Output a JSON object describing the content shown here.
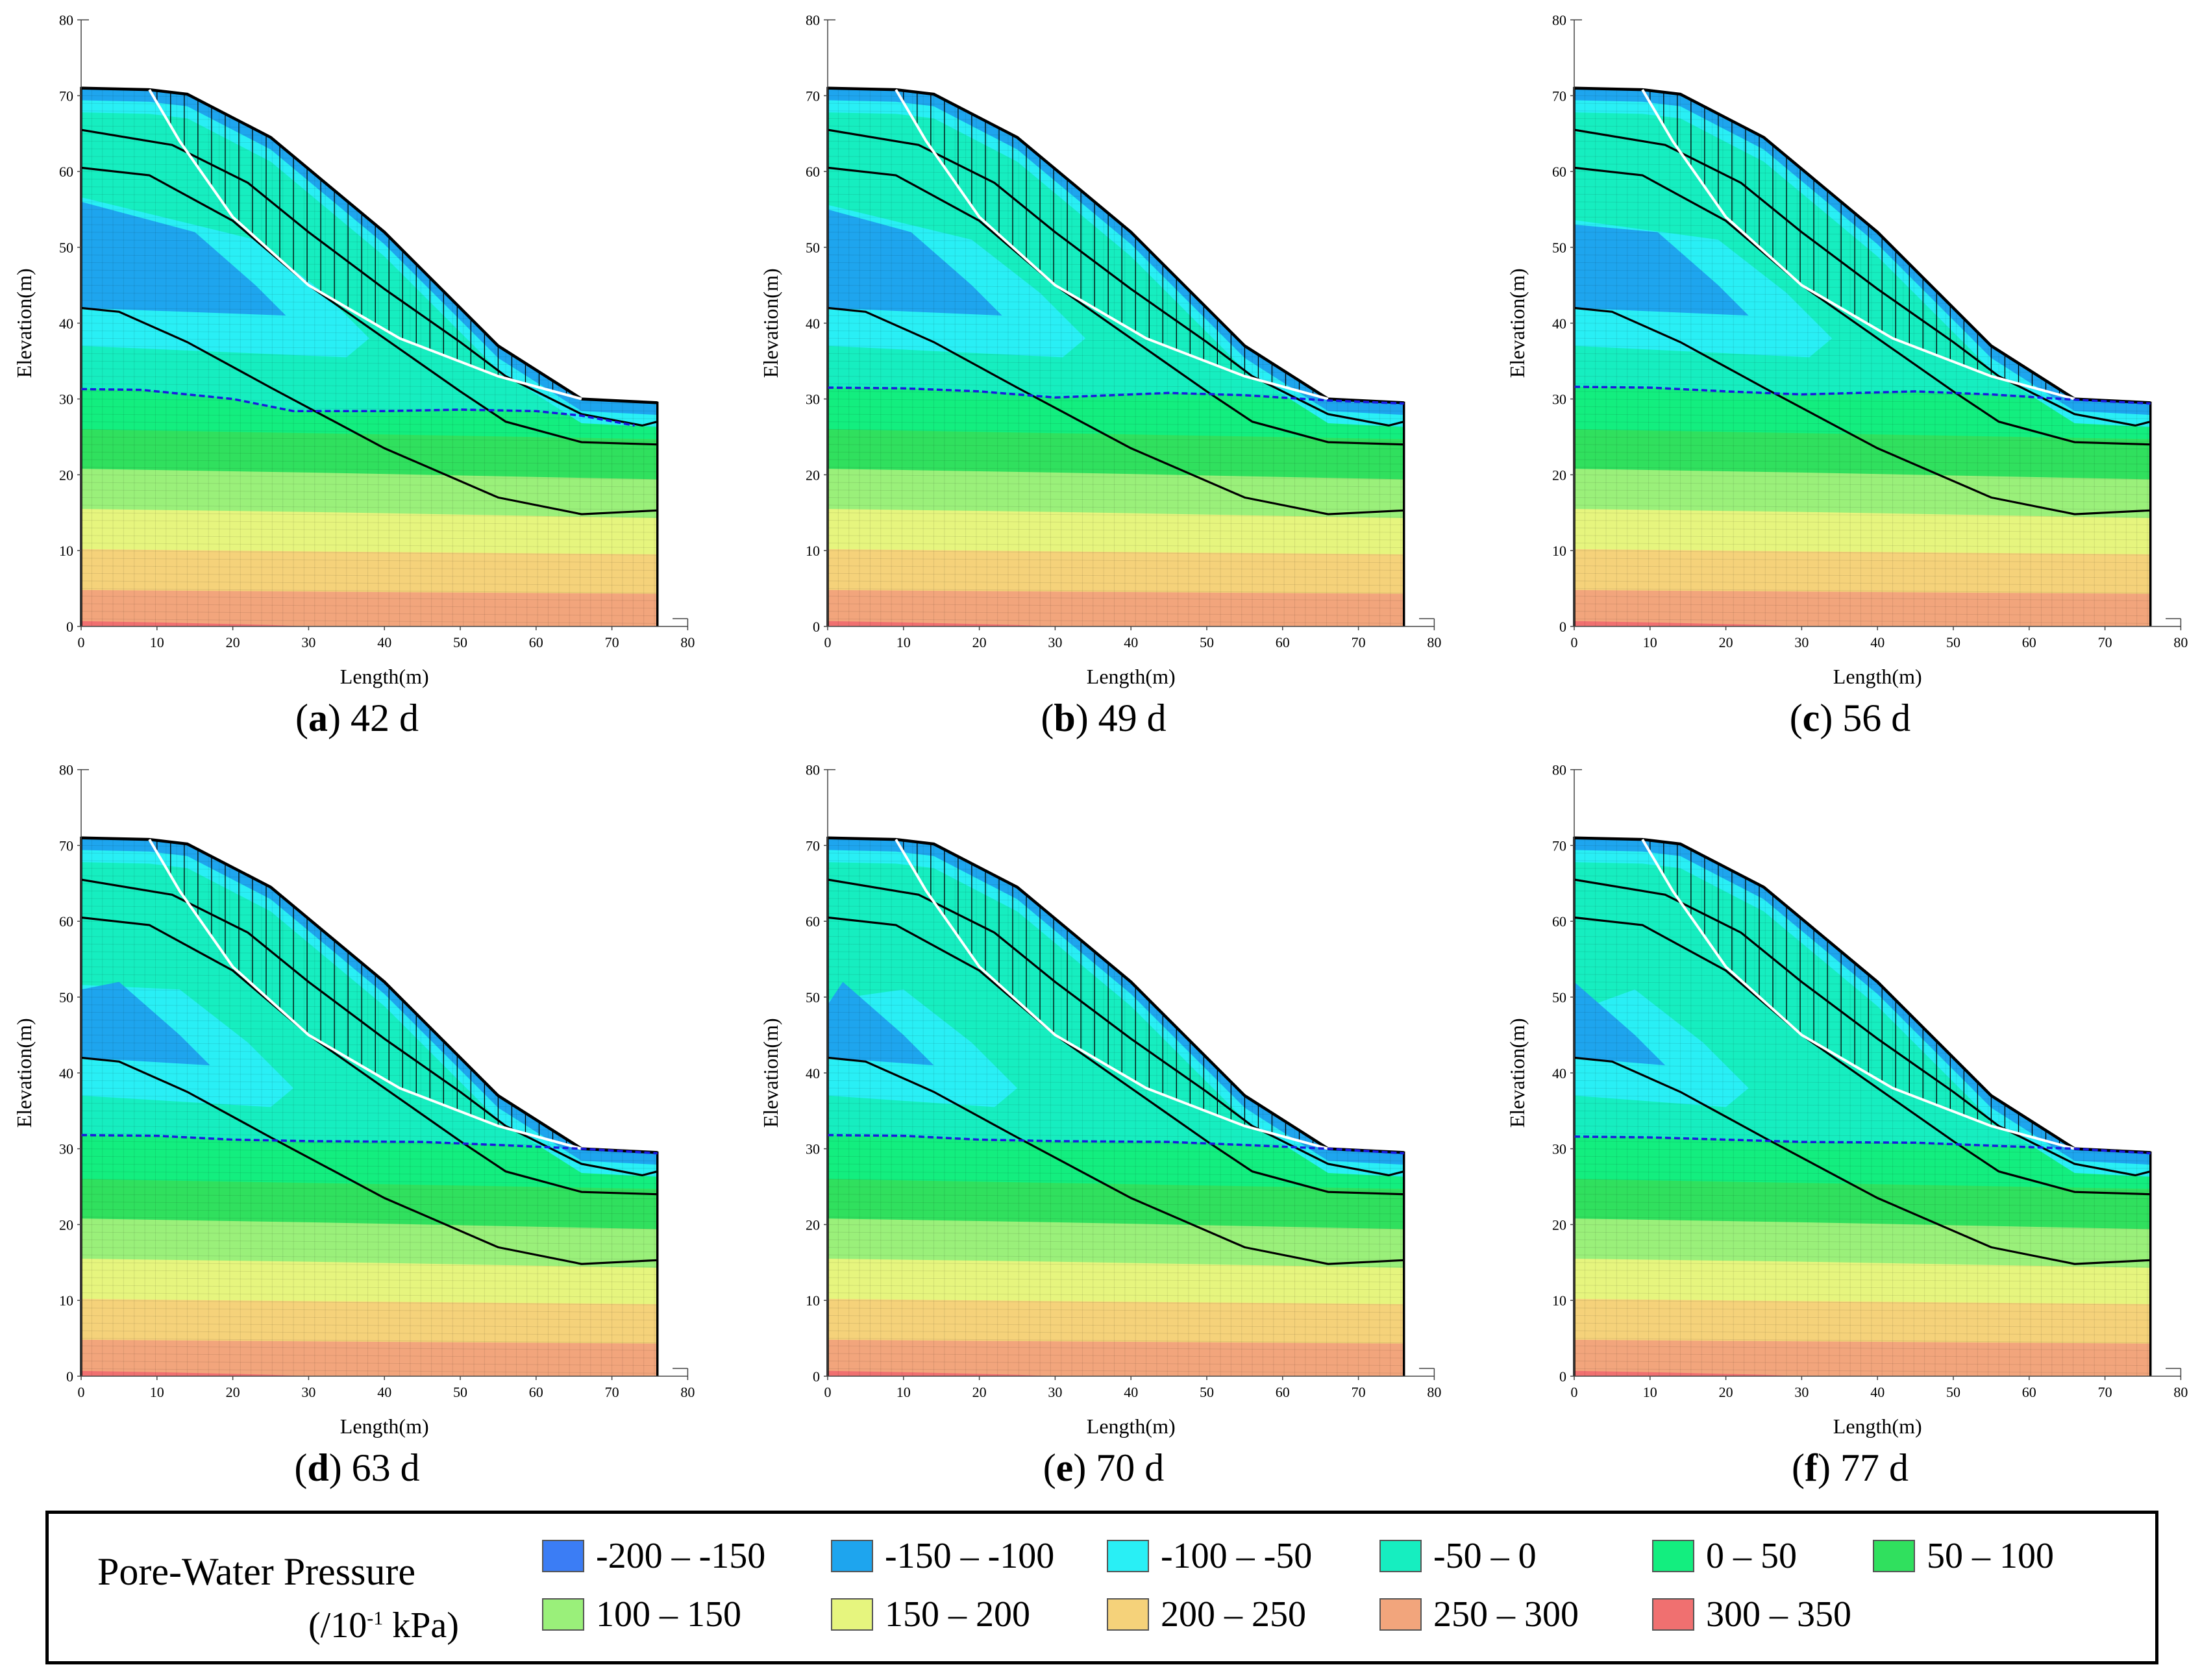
{
  "chart_data": {
    "type": "contour",
    "quantity": "Pore-Water Pressure",
    "unit": "/10-1 kPa",
    "xlabel": "Length(m)",
    "ylabel": "Elevation(m)",
    "xlim": [
      0,
      80
    ],
    "ylim": [
      0,
      80
    ],
    "xticks": [
      "0",
      "10",
      "20",
      "30",
      "40",
      "50",
      "60",
      "70",
      "80"
    ],
    "yticks": [
      "0",
      "10",
      "20",
      "30",
      "40",
      "50",
      "60",
      "70",
      "80"
    ],
    "colors": {
      "-200 – -150": "#3b7df5",
      "-150 – -100": "#1ea5ee",
      "-100 – -50": "#29eff5",
      "-50 – 0": "#16eec0",
      "0 – 50": "#13ee7f",
      "50 – 100": "#30e05e",
      "100 – 150": "#9af07a",
      "150 – 200": "#e6f57e",
      "200 – 250": "#f5d27a",
      "250 – 300": "#f2a57c",
      "300 – 350": "#f07070"
    },
    "panels": [
      {
        "letter": "a",
        "label": "42 d",
        "water_table": [
          [
            0,
            31.3
          ],
          [
            8,
            31.2
          ],
          [
            20,
            30
          ],
          [
            28,
            28.4
          ],
          [
            40,
            28.4
          ],
          [
            50,
            28.6
          ],
          [
            60,
            28.4
          ],
          [
            66,
            27.8
          ],
          [
            73,
            26.5
          ]
        ],
        "suction_zone_x": 29,
        "suction_zone_top": 56
      },
      {
        "letter": "b",
        "label": "49 d",
        "water_table": [
          [
            0,
            31.5
          ],
          [
            10,
            31.4
          ],
          [
            20,
            31
          ],
          [
            30,
            30.2
          ],
          [
            45,
            30.8
          ],
          [
            55,
            30.5
          ],
          [
            66,
            29.8
          ],
          [
            76,
            29.4
          ]
        ],
        "suction_zone_x": 25,
        "suction_zone_top": 55
      },
      {
        "letter": "c",
        "label": "56 d",
        "water_table": [
          [
            0,
            31.6
          ],
          [
            10,
            31.5
          ],
          [
            20,
            31
          ],
          [
            30,
            30.6
          ],
          [
            45,
            31
          ],
          [
            55,
            30.6
          ],
          [
            66,
            29.9
          ],
          [
            76,
            29.4
          ]
        ],
        "suction_zone_x": 25,
        "suction_zone_top": 53
      },
      {
        "letter": "d",
        "label": "63 d",
        "water_table": [
          [
            0,
            31.8
          ],
          [
            10,
            31.7
          ],
          [
            20,
            31.2
          ],
          [
            30,
            31
          ],
          [
            45,
            30.9
          ],
          [
            55,
            30.5
          ],
          [
            66,
            30
          ],
          [
            76,
            29.4
          ]
        ],
        "suction_zone_x": 19,
        "suction_zone_top": 51
      },
      {
        "letter": "e",
        "label": "70 d",
        "water_table": [
          [
            0,
            31.8
          ],
          [
            10,
            31.7
          ],
          [
            20,
            31.2
          ],
          [
            30,
            31
          ],
          [
            45,
            30.9
          ],
          [
            55,
            30.5
          ],
          [
            66,
            30
          ],
          [
            76,
            29.4
          ]
        ],
        "suction_zone_x": 16,
        "suction_zone_top": 49
      },
      {
        "letter": "f",
        "label": "77 d",
        "water_table": [
          [
            0,
            31.6
          ],
          [
            10,
            31.5
          ],
          [
            20,
            31.2
          ],
          [
            30,
            30.9
          ],
          [
            45,
            30.8
          ],
          [
            55,
            30.4
          ],
          [
            66,
            30
          ],
          [
            76,
            29.4
          ]
        ],
        "suction_zone_x": 14,
        "suction_zone_top": 47.5
      }
    ],
    "ground_surface": [
      [
        0,
        71
      ],
      [
        9,
        70.8
      ],
      [
        14,
        70.2
      ],
      [
        25,
        64.5
      ],
      [
        40,
        52
      ],
      [
        55,
        37
      ],
      [
        66,
        30
      ],
      [
        76,
        29.5
      ]
    ],
    "slip_surface": [
      [
        9,
        70.8
      ],
      [
        13,
        64
      ],
      [
        20,
        54
      ],
      [
        30,
        45
      ],
      [
        42,
        38
      ],
      [
        55,
        33
      ],
      [
        66,
        30
      ]
    ]
  },
  "legend": {
    "title": "Pore-Water Pressure",
    "unit_prefix": "(/10",
    "unit_exp": "-1",
    "unit_suffix": " kPa)",
    "items": [
      {
        "label": "-200 – -150",
        "color": "#3b7df5"
      },
      {
        "label": "-150 – -100",
        "color": "#1ea5ee"
      },
      {
        "label": "-100 – -50",
        "color": "#29eff5"
      },
      {
        "label": "-50 – 0",
        "color": "#16eec0"
      },
      {
        "label": "0 – 50",
        "color": "#13ee7f"
      },
      {
        "label": "50 – 100",
        "color": "#30e05e"
      },
      {
        "label": "100 – 150",
        "color": "#9af07a"
      },
      {
        "label": "150 – 200",
        "color": "#e6f57e"
      },
      {
        "label": "200 – 250",
        "color": "#f5d27a"
      },
      {
        "label": "250 – 300",
        "color": "#f2a57c"
      },
      {
        "label": "300 – 350",
        "color": "#f07070"
      }
    ]
  }
}
